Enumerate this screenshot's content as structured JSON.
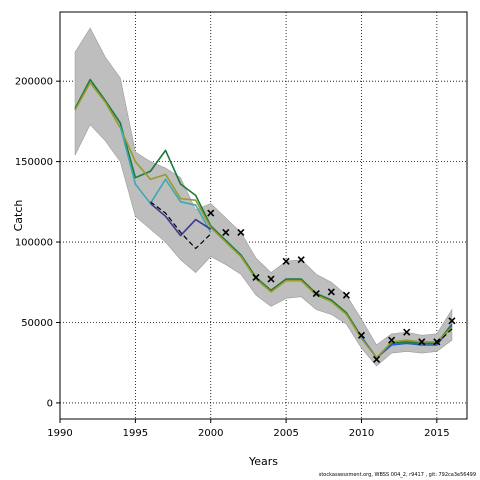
{
  "chart_data": {
    "type": "line",
    "xlabel": "Years",
    "ylabel": "Catch",
    "xlim": [
      1990,
      2017
    ],
    "ylim": [
      -10000,
      243000
    ],
    "x_ticks": [
      1990,
      1995,
      2000,
      2005,
      2010,
      2015
    ],
    "x_tick_labels": [
      "1990",
      "1995",
      "2000",
      "2005",
      "2010",
      "2015"
    ],
    "y_ticks": [
      0,
      50000,
      100000,
      150000,
      200000
    ],
    "y_tick_labels": [
      "0",
      "50000",
      "100000",
      "150000",
      "200000"
    ],
    "grid": true,
    "grid_style": "dotted",
    "colors": {
      "band": "#bebebe",
      "band_edge": "#9a9a9a",
      "green": "#1a7a3a",
      "blue": "#2060c8",
      "olive": "#9a9a30",
      "teal": "#40a8b0",
      "navy": "#3a3a90",
      "black": "#000000"
    },
    "band": {
      "x": [
        1991,
        1992,
        1993,
        1994,
        1995,
        1996,
        1997,
        1998,
        1999,
        2000,
        2001,
        2002,
        2003,
        2004,
        2005,
        2006,
        2007,
        2008,
        2009,
        2010,
        2011,
        2012,
        2013,
        2014,
        2015,
        2016
      ],
      "lower": [
        154000,
        173000,
        163000,
        150000,
        116000,
        108000,
        100000,
        89000,
        81000,
        91000,
        86000,
        80000,
        67000,
        60000,
        65000,
        66000,
        58000,
        55000,
        49000,
        34000,
        23000,
        31000,
        32000,
        31000,
        32000,
        39000
      ],
      "upper": [
        218000,
        233000,
        215000,
        202000,
        156000,
        150000,
        146000,
        140000,
        120000,
        124000,
        115000,
        106000,
        90000,
        81000,
        88000,
        89000,
        80000,
        75000,
        67000,
        52000,
        36000,
        43000,
        44000,
        42000,
        43000,
        58000
      ]
    },
    "series": [
      {
        "color": "green",
        "x": [
          1991,
          1992,
          1993,
          1994,
          1995,
          1996,
          1997,
          1998,
          1999,
          2000,
          2001,
          2002,
          2003,
          2004,
          2005,
          2006,
          2007,
          2008,
          2009,
          2010,
          2011,
          2012,
          2013,
          2014,
          2015,
          2016
        ],
        "y": [
          183000,
          201000,
          188000,
          174000,
          140000,
          144000,
          157000,
          136000,
          129000,
          110000,
          101000,
          92000,
          78000,
          70000,
          77000,
          77000,
          68000,
          64000,
          56000,
          41000,
          28000,
          37000,
          38000,
          37000,
          37000,
          49000
        ]
      },
      {
        "color": "blue",
        "x": [
          2010,
          2011,
          2012,
          2013,
          2014,
          2015,
          2016
        ],
        "y": [
          41000,
          28000,
          36000,
          37000,
          36000,
          36000,
          48000
        ]
      },
      {
        "color": "olive",
        "x": [
          1991,
          1992,
          1993,
          1994,
          1995,
          1996,
          1997,
          1998,
          1999,
          2000,
          2001,
          2002,
          2003,
          2004,
          2005,
          2006,
          2007,
          2008,
          2009,
          2010,
          2011,
          2012,
          2013,
          2014,
          2015,
          2016
        ],
        "y": [
          182000,
          199000,
          187000,
          171000,
          150000,
          139000,
          142000,
          127000,
          126000,
          109000,
          100000,
          91000,
          77000,
          69000,
          76000,
          76000,
          67000,
          63000,
          55000,
          40000,
          28000,
          38000,
          39000,
          38000,
          38000,
          47000
        ]
      },
      {
        "color": "teal",
        "x": [
          1994,
          1995,
          1996,
          1997,
          1998,
          1999,
          2000
        ],
        "y": [
          172000,
          136000,
          124000,
          139000,
          125000,
          123000,
          106000
        ]
      },
      {
        "color": "navy",
        "x": [
          1996,
          1997,
          1998,
          1999,
          2000
        ],
        "y": [
          124000,
          116000,
          104000,
          114000,
          108000
        ]
      },
      {
        "color": "black",
        "dashed": true,
        "x": [
          1996,
          1997,
          1998,
          1999,
          2000
        ],
        "y": [
          125000,
          118000,
          106000,
          96000,
          105000
        ]
      },
      {
        "color": "black",
        "dashed": true,
        "x": [
          2015,
          2016
        ],
        "y": [
          37000,
          46000
        ]
      }
    ],
    "observed": {
      "marker": "x",
      "x": [
        2000,
        2001,
        2002,
        2003,
        2004,
        2005,
        2006,
        2007,
        2008,
        2009,
        2010,
        2011,
        2012,
        2013,
        2014,
        2015,
        2016
      ],
      "y": [
        118000,
        106000,
        106000,
        78000,
        77000,
        88000,
        89000,
        68000,
        69000,
        67000,
        42000,
        27000,
        39000,
        44000,
        38000,
        38000,
        51000
      ]
    }
  },
  "footer": "stockassessment.org, WBSS 004_2, r9417 , git: 792ca3e56499"
}
